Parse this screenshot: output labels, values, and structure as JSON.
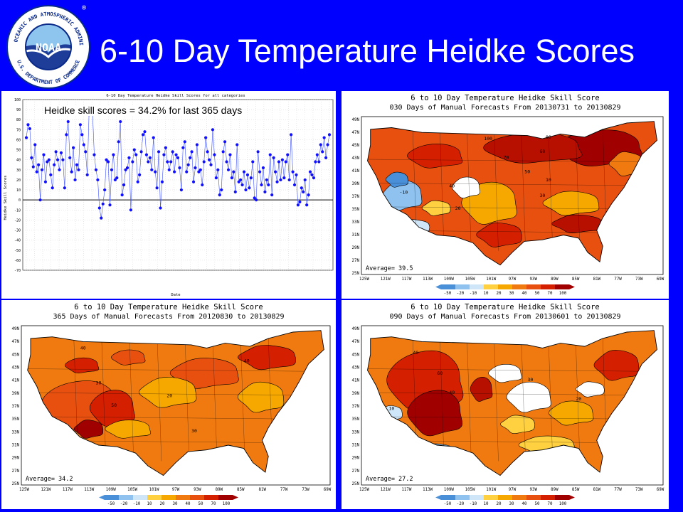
{
  "header": {
    "title": "6-10 Day Temperature Heidke Scores",
    "logo": {
      "ring_text": "NATIONAL OCEANIC AND ATMOSPHERIC ADMINISTRATION",
      "bottom_text": "U.S. DEPARTMENT OF COMMERCE",
      "center_text": "NOAA",
      "registered": "®"
    }
  },
  "colors": {
    "background": "#0000ff",
    "title": "#ffffff",
    "scale": [
      "#4a90d9",
      "#8fc2ee",
      "#cfe6f8",
      "#ffd040",
      "#f7a800",
      "#f07a10",
      "#e85010",
      "#d42000",
      "#a00000"
    ]
  },
  "skill_chart": {
    "title": "6-10 Day Temperature Heidke Skill Scores for all categories",
    "caption": "Heidke skill scores = 34.2% for last 365 days",
    "ylabel": "Heidke Skill Scores",
    "xlabel": "Date"
  },
  "maps": {
    "p30": {
      "line1": "6 to 10 Day Temperature Heidke Skill Score",
      "line2": "030 Days of Manual Forecasts From 20130731 to 20130829",
      "average": "Average= 39.5",
      "contours": [
        {
          "label": "100",
          "value": 100
        },
        {
          "label": "80",
          "value": 80
        },
        {
          "label": "70",
          "value": 70
        },
        {
          "label": "60",
          "value": 60
        },
        {
          "label": "50",
          "value": 50
        },
        {
          "label": "40",
          "value": 40
        },
        {
          "label": "30",
          "value": 30
        },
        {
          "label": "20",
          "value": 20
        },
        {
          "label": "10",
          "value": 10
        },
        {
          "label": "-10",
          "value": -10
        }
      ]
    },
    "p365": {
      "line1": "6 to 10 Day Temperature Heidke Skill Score",
      "line2": "365 Days of Manual Forecasts From 20120830 to 20130829",
      "average": "Average= 34.2",
      "contours": [
        {
          "label": "40",
          "value": 40
        },
        {
          "label": "30",
          "value": 30
        },
        {
          "label": "50",
          "value": 50
        },
        {
          "label": "20",
          "value": 20
        },
        {
          "label": "40",
          "value": 40
        },
        {
          "label": "30",
          "value": 30
        }
      ]
    },
    "p90": {
      "line1": "6 to 10 Day Temperature Heidke Skill Score",
      "line2": "090 Days of Manual Forecasts From 20130601 to 20130829",
      "average": "Average= 27.2",
      "contours": [
        {
          "label": "40",
          "value": 40
        },
        {
          "label": "60",
          "value": 60
        },
        {
          "label": "40",
          "value": 40
        },
        {
          "label": "30",
          "value": 30
        },
        {
          "label": "20",
          "value": 20
        },
        {
          "label": "10",
          "value": 10
        }
      ]
    }
  },
  "lat_labels": [
    "49N",
    "47N",
    "45N",
    "43N",
    "41N",
    "39N",
    "37N",
    "35N",
    "33N",
    "31N",
    "29N",
    "27N",
    "25N"
  ],
  "lon_labels": [
    "125W",
    "121W",
    "117W",
    "113W",
    "109W",
    "105W",
    "101W",
    "97W",
    "93W",
    "89W",
    "85W",
    "81W",
    "77W",
    "73W",
    "69W"
  ],
  "scale_labels": [
    "-50",
    "-20",
    "-10",
    "10",
    "20",
    "30",
    "40",
    "50",
    "70",
    "100"
  ],
  "chart_data": {
    "type": "line",
    "title": "6-10 Day Temperature Heidke Skill Scores for all categories",
    "ylabel": "Heidke Skill Scores",
    "xlabel": "Date",
    "ylim": [
      -70,
      100
    ],
    "yticks": [
      -70,
      -60,
      -50,
      -40,
      -30,
      -20,
      -10,
      0,
      10,
      20,
      30,
      40,
      50,
      60,
      70,
      80,
      90,
      100
    ],
    "grid": true,
    "series": [
      {
        "values": [
          62,
          75,
          71,
          42,
          33,
          55,
          28,
          35,
          0,
          30,
          45,
          18,
          38,
          40,
          25,
          12,
          35,
          48,
          40,
          30,
          47,
          40,
          12,
          65,
          78,
          42,
          28,
          52,
          20,
          35,
          30,
          75,
          65,
          55,
          48,
          25,
          85,
          90,
          88,
          45,
          30,
          20,
          -8,
          -18,
          -4,
          10,
          40,
          38,
          -5,
          30,
          45,
          20,
          22,
          58,
          78,
          5,
          15,
          30,
          32,
          42,
          -10,
          38,
          50,
          45,
          18,
          25,
          48,
          65,
          68,
          45,
          38,
          42,
          30,
          62,
          28,
          12,
          48,
          -8,
          18,
          45,
          52,
          38,
          30,
          38,
          48,
          28,
          45,
          42,
          32,
          10,
          52,
          58,
          28,
          35,
          42,
          48,
          18,
          32,
          55,
          28,
          30,
          15,
          38,
          62,
          48,
          40,
          35,
          70,
          45,
          22,
          30,
          5,
          10,
          48,
          58,
          38,
          30,
          45,
          22,
          28,
          8,
          55,
          18,
          20,
          15,
          28,
          10,
          25,
          12,
          22,
          38,
          2,
          0,
          48,
          28,
          15,
          32,
          8,
          20,
          15,
          45,
          5,
          42,
          28,
          18,
          38,
          20,
          40,
          22,
          38,
          45,
          20,
          65,
          28,
          15,
          25,
          -5,
          -2,
          12,
          8,
          20,
          -5,
          5,
          28,
          25,
          22,
          38,
          45,
          38,
          55,
          48,
          62,
          42,
          55,
          65
        ]
      }
    ]
  }
}
